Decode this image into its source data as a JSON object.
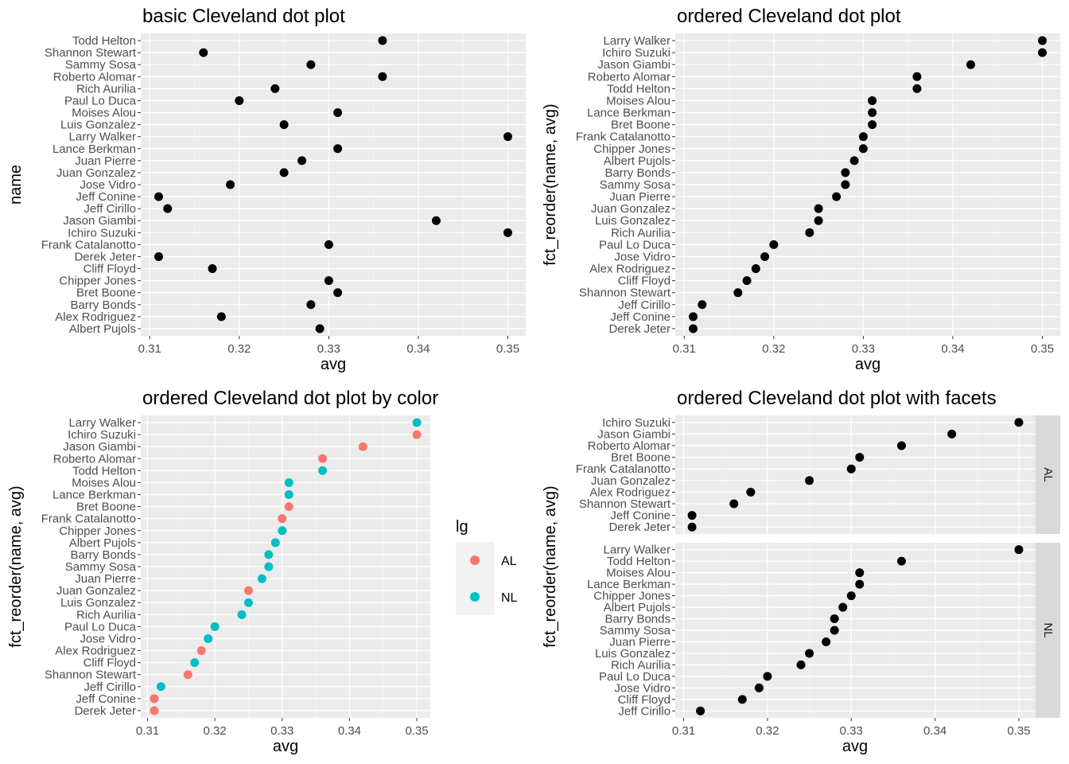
{
  "chart_data": [
    {
      "type": "scatter",
      "title": "basic Cleveland dot plot",
      "xlabel": "avg",
      "ylabel": "name",
      "xlim": [
        0.309,
        0.352
      ],
      "xticks": [
        "0.31",
        "0.32",
        "0.33",
        "0.34",
        "0.35"
      ],
      "grid": true,
      "points": [
        {
          "name": "Albert Pujols",
          "avg": 0.329
        },
        {
          "name": "Alex Rodriguez",
          "avg": 0.318
        },
        {
          "name": "Barry Bonds",
          "avg": 0.328
        },
        {
          "name": "Bret Boone",
          "avg": 0.331
        },
        {
          "name": "Chipper Jones",
          "avg": 0.33
        },
        {
          "name": "Cliff Floyd",
          "avg": 0.317
        },
        {
          "name": "Derek Jeter",
          "avg": 0.311
        },
        {
          "name": "Frank Catalanotto",
          "avg": 0.33
        },
        {
          "name": "Ichiro Suzuki",
          "avg": 0.35
        },
        {
          "name": "Jason Giambi",
          "avg": 0.342
        },
        {
          "name": "Jeff Cirillo",
          "avg": 0.312
        },
        {
          "name": "Jeff Conine",
          "avg": 0.311
        },
        {
          "name": "Jose Vidro",
          "avg": 0.319
        },
        {
          "name": "Juan Gonzalez",
          "avg": 0.325
        },
        {
          "name": "Juan Pierre",
          "avg": 0.327
        },
        {
          "name": "Lance Berkman",
          "avg": 0.331
        },
        {
          "name": "Larry Walker",
          "avg": 0.35
        },
        {
          "name": "Luis Gonzalez",
          "avg": 0.325
        },
        {
          "name": "Moises Alou",
          "avg": 0.331
        },
        {
          "name": "Paul Lo Duca",
          "avg": 0.32
        },
        {
          "name": "Rich Aurilia",
          "avg": 0.324
        },
        {
          "name": "Roberto Alomar",
          "avg": 0.336
        },
        {
          "name": "Sammy Sosa",
          "avg": 0.328
        },
        {
          "name": "Shannon Stewart",
          "avg": 0.316
        },
        {
          "name": "Todd Helton",
          "avg": 0.336
        }
      ]
    },
    {
      "type": "scatter",
      "title": "ordered Cleveland dot plot",
      "xlabel": "avg",
      "ylabel": "fct_reorder(name, avg)",
      "xlim": [
        0.309,
        0.352
      ],
      "xticks": [
        "0.31",
        "0.32",
        "0.33",
        "0.34",
        "0.35"
      ],
      "grid": true,
      "points": [
        {
          "name": "Derek Jeter",
          "avg": 0.311
        },
        {
          "name": "Jeff Conine",
          "avg": 0.311
        },
        {
          "name": "Jeff Cirillo",
          "avg": 0.312
        },
        {
          "name": "Shannon Stewart",
          "avg": 0.316
        },
        {
          "name": "Cliff Floyd",
          "avg": 0.317
        },
        {
          "name": "Alex Rodriguez",
          "avg": 0.318
        },
        {
          "name": "Jose Vidro",
          "avg": 0.319
        },
        {
          "name": "Paul Lo Duca",
          "avg": 0.32
        },
        {
          "name": "Rich Aurilia",
          "avg": 0.324
        },
        {
          "name": "Luis Gonzalez",
          "avg": 0.325
        },
        {
          "name": "Juan Gonzalez",
          "avg": 0.325
        },
        {
          "name": "Juan Pierre",
          "avg": 0.327
        },
        {
          "name": "Sammy Sosa",
          "avg": 0.328
        },
        {
          "name": "Barry Bonds",
          "avg": 0.328
        },
        {
          "name": "Albert Pujols",
          "avg": 0.329
        },
        {
          "name": "Chipper Jones",
          "avg": 0.33
        },
        {
          "name": "Frank Catalanotto",
          "avg": 0.33
        },
        {
          "name": "Bret Boone",
          "avg": 0.331
        },
        {
          "name": "Lance Berkman",
          "avg": 0.331
        },
        {
          "name": "Moises Alou",
          "avg": 0.331
        },
        {
          "name": "Todd Helton",
          "avg": 0.336
        },
        {
          "name": "Roberto Alomar",
          "avg": 0.336
        },
        {
          "name": "Jason Giambi",
          "avg": 0.342
        },
        {
          "name": "Ichiro Suzuki",
          "avg": 0.35
        },
        {
          "name": "Larry Walker",
          "avg": 0.35
        }
      ]
    },
    {
      "type": "scatter",
      "title": "ordered Cleveland dot plot by color",
      "xlabel": "avg",
      "ylabel": "fct_reorder(name, avg)",
      "xlim": [
        0.309,
        0.352
      ],
      "xticks": [
        "0.31",
        "0.32",
        "0.33",
        "0.34",
        "0.35"
      ],
      "grid": true,
      "legend": {
        "title": "lg",
        "placement": "right",
        "entries": [
          {
            "label": "AL",
            "color": "#F8766D"
          },
          {
            "label": "NL",
            "color": "#00BFC4"
          }
        ]
      },
      "points": [
        {
          "name": "Derek Jeter",
          "avg": 0.311,
          "lg": "AL"
        },
        {
          "name": "Jeff Conine",
          "avg": 0.311,
          "lg": "AL"
        },
        {
          "name": "Jeff Cirillo",
          "avg": 0.312,
          "lg": "NL"
        },
        {
          "name": "Shannon Stewart",
          "avg": 0.316,
          "lg": "AL"
        },
        {
          "name": "Cliff Floyd",
          "avg": 0.317,
          "lg": "NL"
        },
        {
          "name": "Alex Rodriguez",
          "avg": 0.318,
          "lg": "AL"
        },
        {
          "name": "Jose Vidro",
          "avg": 0.319,
          "lg": "NL"
        },
        {
          "name": "Paul Lo Duca",
          "avg": 0.32,
          "lg": "NL"
        },
        {
          "name": "Rich Aurilia",
          "avg": 0.324,
          "lg": "NL"
        },
        {
          "name": "Luis Gonzalez",
          "avg": 0.325,
          "lg": "NL"
        },
        {
          "name": "Juan Gonzalez",
          "avg": 0.325,
          "lg": "AL"
        },
        {
          "name": "Juan Pierre",
          "avg": 0.327,
          "lg": "NL"
        },
        {
          "name": "Sammy Sosa",
          "avg": 0.328,
          "lg": "NL"
        },
        {
          "name": "Barry Bonds",
          "avg": 0.328,
          "lg": "NL"
        },
        {
          "name": "Albert Pujols",
          "avg": 0.329,
          "lg": "NL"
        },
        {
          "name": "Chipper Jones",
          "avg": 0.33,
          "lg": "NL"
        },
        {
          "name": "Frank Catalanotto",
          "avg": 0.33,
          "lg": "AL"
        },
        {
          "name": "Bret Boone",
          "avg": 0.331,
          "lg": "AL"
        },
        {
          "name": "Lance Berkman",
          "avg": 0.331,
          "lg": "NL"
        },
        {
          "name": "Moises Alou",
          "avg": 0.331,
          "lg": "NL"
        },
        {
          "name": "Todd Helton",
          "avg": 0.336,
          "lg": "NL"
        },
        {
          "name": "Roberto Alomar",
          "avg": 0.336,
          "lg": "AL"
        },
        {
          "name": "Jason Giambi",
          "avg": 0.342,
          "lg": "AL"
        },
        {
          "name": "Ichiro Suzuki",
          "avg": 0.35,
          "lg": "AL"
        },
        {
          "name": "Larry Walker",
          "avg": 0.35,
          "lg": "NL"
        }
      ]
    },
    {
      "type": "scatter",
      "title": "ordered Cleveland dot plot with facets",
      "xlabel": "avg",
      "ylabel": "fct_reorder(name, avg)",
      "xlim": [
        0.309,
        0.352
      ],
      "xticks": [
        "0.31",
        "0.32",
        "0.33",
        "0.34",
        "0.35"
      ],
      "grid": true,
      "facets": [
        {
          "label": "AL",
          "points": [
            {
              "name": "Derek Jeter",
              "avg": 0.311
            },
            {
              "name": "Jeff Conine",
              "avg": 0.311
            },
            {
              "name": "Shannon Stewart",
              "avg": 0.316
            },
            {
              "name": "Alex Rodriguez",
              "avg": 0.318
            },
            {
              "name": "Juan Gonzalez",
              "avg": 0.325
            },
            {
              "name": "Frank Catalanotto",
              "avg": 0.33
            },
            {
              "name": "Bret Boone",
              "avg": 0.331
            },
            {
              "name": "Roberto Alomar",
              "avg": 0.336
            },
            {
              "name": "Jason Giambi",
              "avg": 0.342
            },
            {
              "name": "Ichiro Suzuki",
              "avg": 0.35
            }
          ]
        },
        {
          "label": "NL",
          "points": [
            {
              "name": "Jeff Cirillo",
              "avg": 0.312
            },
            {
              "name": "Cliff Floyd",
              "avg": 0.317
            },
            {
              "name": "Jose Vidro",
              "avg": 0.319
            },
            {
              "name": "Paul Lo Duca",
              "avg": 0.32
            },
            {
              "name": "Rich Aurilia",
              "avg": 0.324
            },
            {
              "name": "Luis Gonzalez",
              "avg": 0.325
            },
            {
              "name": "Juan Pierre",
              "avg": 0.327
            },
            {
              "name": "Sammy Sosa",
              "avg": 0.328
            },
            {
              "name": "Barry Bonds",
              "avg": 0.328
            },
            {
              "name": "Albert Pujols",
              "avg": 0.329
            },
            {
              "name": "Chipper Jones",
              "avg": 0.33
            },
            {
              "name": "Lance Berkman",
              "avg": 0.331
            },
            {
              "name": "Moises Alou",
              "avg": 0.331
            },
            {
              "name": "Todd Helton",
              "avg": 0.336
            },
            {
              "name": "Larry Walker",
              "avg": 0.35
            }
          ]
        }
      ]
    }
  ],
  "colors": {
    "panel_bg": "#EBEBEB",
    "grid_major": "#FFFFFF",
    "grid_minor": "#F5F5F5",
    "dot": "#000000",
    "strip_bg": "#D9D9D9",
    "al": "#F8766D",
    "nl": "#00BFC4"
  }
}
